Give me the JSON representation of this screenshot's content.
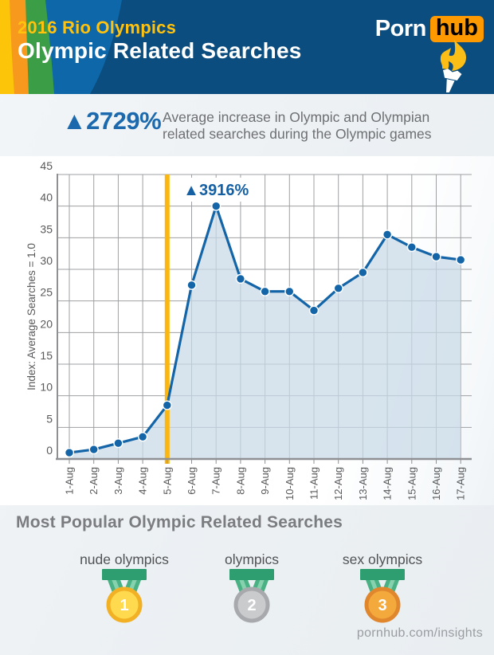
{
  "header": {
    "pretitle": "2016 Rio Olympics",
    "title": "Olympic Related Searches",
    "logo_part1": "Porn",
    "logo_part2": "hub"
  },
  "stats": {
    "value": "▲2729%",
    "description_line1": "Average increase in Olympic and Olympian",
    "description_line2": "related searches during the Olympic games"
  },
  "chart_data": {
    "type": "line",
    "categories": [
      "1-Aug",
      "2-Aug",
      "3-Aug",
      "4-Aug",
      "5-Aug",
      "6-Aug",
      "7-Aug",
      "8-Aug",
      "9-Aug",
      "10-Aug",
      "11-Aug",
      "12-Aug",
      "13-Aug",
      "14-Aug",
      "15-Aug",
      "16-Aug",
      "17-Aug"
    ],
    "values": [
      1,
      1.5,
      2.5,
      3.5,
      8.5,
      27.5,
      40,
      28.5,
      26.5,
      26.5,
      23.5,
      27,
      29.5,
      35.5,
      33.5,
      32,
      31.5
    ],
    "ylabel": "Index: Average Searches = 1.0",
    "ylim": [
      0,
      45
    ],
    "ytick_step": 5,
    "grid": true,
    "legend": "none",
    "marker_line_x": "5-Aug",
    "marker_line_color": "#FBB70F",
    "annotation": {
      "text": "▲3916%",
      "at_x": "7-Aug",
      "color": "#1560A3"
    },
    "line_color": "#1465A8",
    "fill_color": "#C7DAE8",
    "axis_text_color": "#58595B",
    "grid_color": "#9EA0A3",
    "axis_color": "#8E9093"
  },
  "popular": {
    "heading": "Most Popular Olympic Related Searches"
  },
  "medals": [
    {
      "rank": "1",
      "label": "nude olympics",
      "ring": "#F2B024",
      "center": "#FFD94E"
    },
    {
      "rank": "2",
      "label": "olympics",
      "ring": "#A7A9AC",
      "center": "#C9CBCD"
    },
    {
      "rank": "3",
      "label": "sex olympics",
      "ring": "#E0872E",
      "center": "#F4A93C"
    }
  ],
  "footer": {
    "site": "pornhub.com/insights"
  },
  "colors": {
    "navy": "#0B4D7E",
    "band-blue": "#0E67A8",
    "band-green": "#3B9E47",
    "band-orange": "#F6991D",
    "band-yellow": "#FCC50A",
    "logo-orange": "#FF9900",
    "title-yellow": "#FFC20E",
    "stat-blue": "#1C6AAD",
    "text-gray": "#6E6F72",
    "heading-gray": "#7B7C80",
    "label-gray": "#515254",
    "footer-gray": "#9A9DA1",
    "ribbon-green": "#49B183",
    "ribbon-stripe": "#86D2AE",
    "ribbon-bar": "#2E9E70",
    "torch-flame": "#FBBE17"
  }
}
